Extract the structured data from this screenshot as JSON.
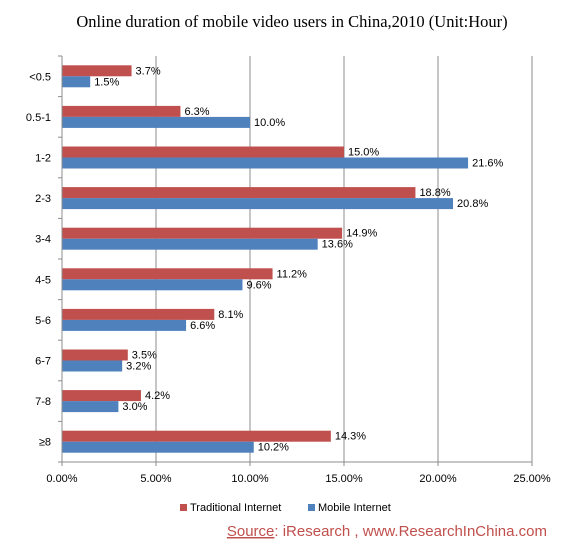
{
  "chart_data": {
    "type": "bar",
    "orientation": "horizontal",
    "title": "Online duration of mobile video users in China,2010 (Unit:Hour)",
    "categories": [
      "<0.5",
      "0.5-1",
      "1-2",
      "2-3",
      "3-4",
      "4-5",
      "5-6",
      "6-7",
      "7-8",
      "≥8"
    ],
    "series": [
      {
        "name": "Traditional Internet",
        "color": "#c0504d",
        "values": [
          3.7,
          6.3,
          15.0,
          18.8,
          14.9,
          11.2,
          8.1,
          3.5,
          4.2,
          14.3
        ],
        "labels": [
          "3.7%",
          "6.3%",
          "15.0%",
          "18.8%",
          "14.9%",
          "11.2%",
          "8.1%",
          "3.5%",
          "4.2%",
          "14.3%"
        ]
      },
      {
        "name": "Mobile Internet",
        "color": "#4f81bd",
        "values": [
          1.5,
          10.0,
          21.6,
          20.8,
          13.6,
          9.6,
          6.6,
          3.2,
          3.0,
          10.2
        ],
        "labels": [
          "1.5%",
          "10.0%",
          "21.6%",
          "20.8%",
          "13.6%",
          "9.6%",
          "6.6%",
          "3.2%",
          "3.0%",
          "10.2%"
        ]
      }
    ],
    "xlim": [
      0,
      25
    ],
    "xticks": [
      0,
      5,
      10,
      15,
      20,
      25
    ],
    "xtick_labels": [
      "0.00%",
      "5.00%",
      "10.00%",
      "15.00%",
      "20.00%",
      "25.00%"
    ],
    "grid": true,
    "legend_position": "bottom"
  },
  "source": {
    "label": "Source",
    "text": ": iResearch , www.ResearchInChina.com"
  }
}
